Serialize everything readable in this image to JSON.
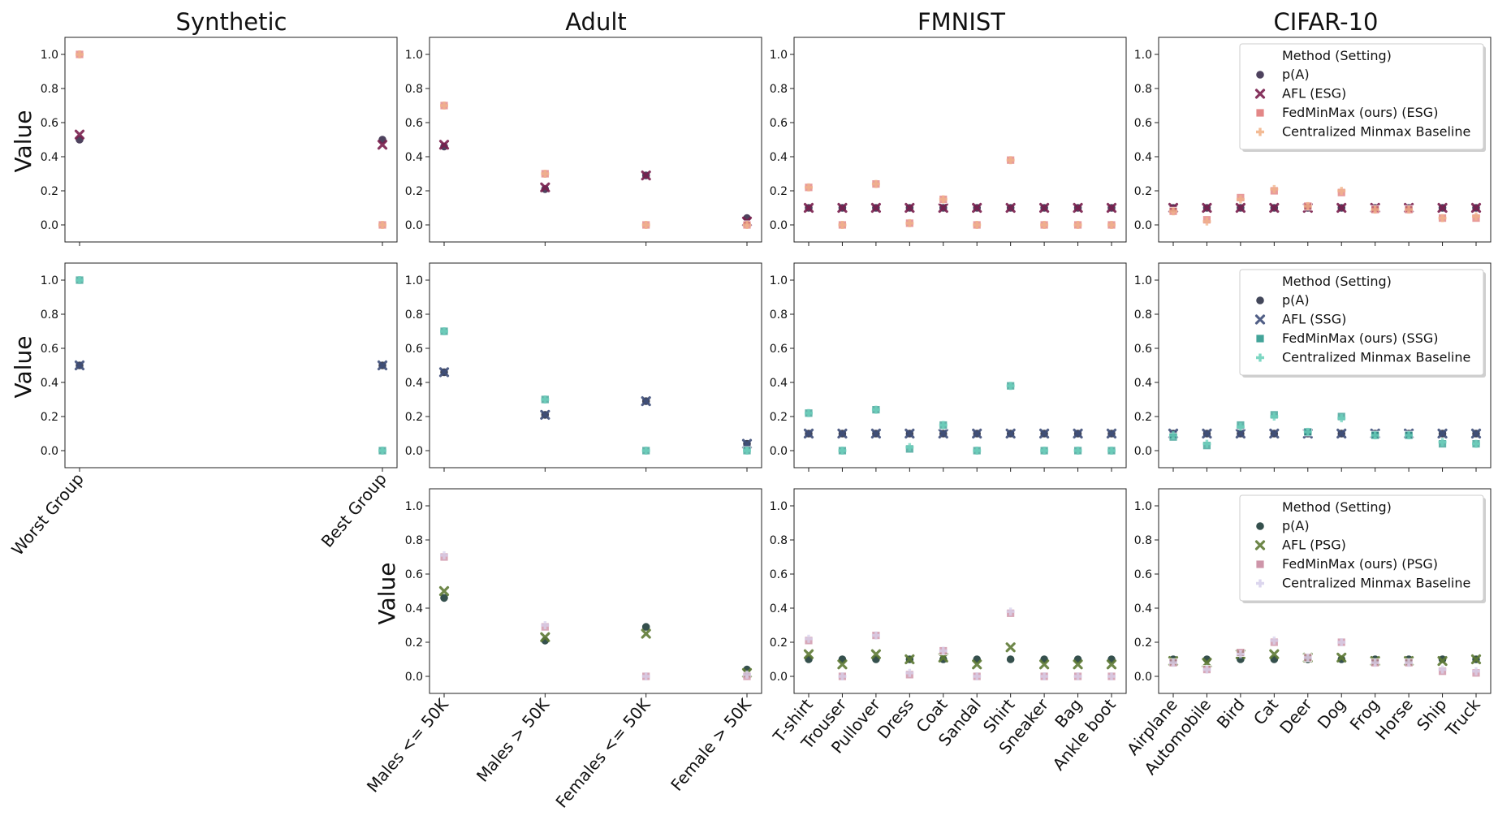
{
  "figure": {
    "column_titles": [
      "Synthetic",
      "Adult",
      "FMNIST",
      "CIFAR-10"
    ],
    "ylabel": "Value",
    "yticks": [
      "0.0",
      "0.2",
      "0.4",
      "0.6",
      "0.8",
      "1.0"
    ],
    "ylim": [
      -0.1,
      1.1
    ]
  },
  "datasets": {
    "synthetic": {
      "categories": [
        "Worst Group",
        "Best Group"
      ]
    },
    "adult": {
      "categories": [
        "Males <= 50K",
        "Males > 50K",
        "Females <= 50K",
        "Female > 50K"
      ]
    },
    "fmnist": {
      "categories": [
        "T-shirt",
        "Trouser",
        "Pullover",
        "Dress",
        "Coat",
        "Sandal",
        "Shirt",
        "Sneaker",
        "Bag",
        "Ankle boot"
      ]
    },
    "cifar": {
      "categories": [
        "Airplane",
        "Automobile",
        "Bird",
        "Cat",
        "Deer",
        "Dog",
        "Frog",
        "Horse",
        "Ship",
        "Truck"
      ]
    }
  },
  "legends": [
    {
      "title": "Method (Setting)",
      "entries": [
        "p(A)",
        "AFL (ESG)",
        "FedMinMax (ours) (ESG)",
        "Centralized Minmax Baseline"
      ]
    },
    {
      "title": "Method (Setting)",
      "entries": [
        "p(A)",
        "AFL (SSG)",
        "FedMinMax (ours) (SSG)",
        "Centralized Minmax Baseline"
      ]
    },
    {
      "title": "Method (Setting)",
      "entries": [
        "p(A)",
        "AFL (PSG)",
        "FedMinMax (ours) (PSG)",
        "Centralized Minmax Baseline"
      ]
    }
  ],
  "colors": {
    "ESG": [
      "#3b2e4d",
      "#7a1f4e",
      "#e07a7a",
      "#f2b48a"
    ],
    "SSG": [
      "#2e3348",
      "#3f4f7a",
      "#2f9a8e",
      "#6fd3bd"
    ],
    "PSG": [
      "#1f3d3a",
      "#5e7a35",
      "#c98aa0",
      "#d8d2ec"
    ]
  },
  "chart_data": [
    {
      "type": "scatter",
      "row": 0,
      "dataset": "synthetic",
      "setting": "ESG",
      "series": [
        {
          "name": "p(A)",
          "values": [
            0.5,
            0.5
          ]
        },
        {
          "name": "AFL (ESG)",
          "values": [
            0.53,
            0.47
          ]
        },
        {
          "name": "FedMinMax (ours) (ESG)",
          "values": [
            1.0,
            0.0
          ]
        },
        {
          "name": "Centralized Minmax Baseline",
          "values": [
            1.0,
            0.0
          ]
        }
      ]
    },
    {
      "type": "scatter",
      "row": 0,
      "dataset": "adult",
      "setting": "ESG",
      "series": [
        {
          "name": "p(A)",
          "values": [
            0.46,
            0.21,
            0.29,
            0.04
          ]
        },
        {
          "name": "AFL (ESG)",
          "values": [
            0.47,
            0.22,
            0.29,
            0.02
          ]
        },
        {
          "name": "FedMinMax (ours) (ESG)",
          "values": [
            0.7,
            0.3,
            0.0,
            0.0
          ]
        },
        {
          "name": "Centralized Minmax Baseline",
          "values": [
            0.7,
            0.3,
            0.0,
            0.0
          ]
        }
      ]
    },
    {
      "type": "scatter",
      "row": 0,
      "dataset": "fmnist",
      "setting": "ESG",
      "series": [
        {
          "name": "p(A)",
          "values": [
            0.1,
            0.1,
            0.1,
            0.1,
            0.1,
            0.1,
            0.1,
            0.1,
            0.1,
            0.1
          ]
        },
        {
          "name": "AFL (ESG)",
          "values": [
            0.1,
            0.1,
            0.1,
            0.1,
            0.1,
            0.1,
            0.1,
            0.1,
            0.1,
            0.1
          ]
        },
        {
          "name": "FedMinMax (ours) (ESG)",
          "values": [
            0.22,
            0.0,
            0.24,
            0.01,
            0.15,
            0.0,
            0.38,
            0.0,
            0.0,
            0.0
          ]
        },
        {
          "name": "Centralized Minmax Baseline",
          "values": [
            0.22,
            0.0,
            0.24,
            0.01,
            0.15,
            0.0,
            0.38,
            0.0,
            0.0,
            0.0
          ]
        }
      ]
    },
    {
      "type": "scatter",
      "row": 0,
      "dataset": "cifar",
      "setting": "ESG",
      "series": [
        {
          "name": "p(A)",
          "values": [
            0.1,
            0.1,
            0.1,
            0.1,
            0.1,
            0.1,
            0.1,
            0.1,
            0.1,
            0.1
          ]
        },
        {
          "name": "AFL (ESG)",
          "values": [
            0.1,
            0.1,
            0.1,
            0.1,
            0.1,
            0.1,
            0.1,
            0.1,
            0.1,
            0.1
          ]
        },
        {
          "name": "FedMinMax (ours) (ESG)",
          "values": [
            0.08,
            0.03,
            0.16,
            0.2,
            0.11,
            0.19,
            0.09,
            0.09,
            0.04,
            0.04
          ]
        },
        {
          "name": "Centralized Minmax Baseline",
          "values": [
            0.08,
            0.02,
            0.15,
            0.21,
            0.11,
            0.2,
            0.09,
            0.09,
            0.04,
            0.05
          ]
        }
      ]
    },
    {
      "type": "scatter",
      "row": 1,
      "dataset": "synthetic",
      "setting": "SSG",
      "series": [
        {
          "name": "p(A)",
          "values": [
            0.5,
            0.5
          ]
        },
        {
          "name": "AFL (SSG)",
          "values": [
            0.5,
            0.5
          ]
        },
        {
          "name": "FedMinMax (ours) (SSG)",
          "values": [
            1.0,
            0.0
          ]
        },
        {
          "name": "Centralized Minmax Baseline",
          "values": [
            1.0,
            0.0
          ]
        }
      ]
    },
    {
      "type": "scatter",
      "row": 1,
      "dataset": "adult",
      "setting": "SSG",
      "series": [
        {
          "name": "p(A)",
          "values": [
            0.46,
            0.21,
            0.29,
            0.04
          ]
        },
        {
          "name": "AFL (SSG)",
          "values": [
            0.46,
            0.21,
            0.29,
            0.04
          ]
        },
        {
          "name": "FedMinMax (ours) (SSG)",
          "values": [
            0.7,
            0.3,
            0.0,
            0.0
          ]
        },
        {
          "name": "Centralized Minmax Baseline",
          "values": [
            0.7,
            0.3,
            0.0,
            0.0
          ]
        }
      ]
    },
    {
      "type": "scatter",
      "row": 1,
      "dataset": "fmnist",
      "setting": "SSG",
      "series": [
        {
          "name": "p(A)",
          "values": [
            0.1,
            0.1,
            0.1,
            0.1,
            0.1,
            0.1,
            0.1,
            0.1,
            0.1,
            0.1
          ]
        },
        {
          "name": "AFL (SSG)",
          "values": [
            0.1,
            0.1,
            0.1,
            0.1,
            0.1,
            0.1,
            0.1,
            0.1,
            0.1,
            0.1
          ]
        },
        {
          "name": "FedMinMax (ours) (SSG)",
          "values": [
            0.22,
            0.0,
            0.24,
            0.01,
            0.15,
            0.0,
            0.38,
            0.0,
            0.0,
            0.0
          ]
        },
        {
          "name": "Centralized Minmax Baseline",
          "values": [
            0.22,
            0.0,
            0.24,
            0.02,
            0.15,
            0.0,
            0.38,
            0.0,
            0.0,
            0.0
          ]
        }
      ]
    },
    {
      "type": "scatter",
      "row": 1,
      "dataset": "cifar",
      "setting": "SSG",
      "series": [
        {
          "name": "p(A)",
          "values": [
            0.1,
            0.1,
            0.1,
            0.1,
            0.1,
            0.1,
            0.1,
            0.1,
            0.1,
            0.1
          ]
        },
        {
          "name": "AFL (SSG)",
          "values": [
            0.1,
            0.1,
            0.1,
            0.1,
            0.1,
            0.1,
            0.1,
            0.1,
            0.1,
            0.1
          ]
        },
        {
          "name": "FedMinMax (ours) (SSG)",
          "values": [
            0.08,
            0.03,
            0.15,
            0.21,
            0.11,
            0.2,
            0.09,
            0.09,
            0.04,
            0.04
          ]
        },
        {
          "name": "Centralized Minmax Baseline",
          "values": [
            0.09,
            0.04,
            0.14,
            0.2,
            0.11,
            0.19,
            0.09,
            0.09,
            0.05,
            0.04
          ]
        }
      ]
    },
    {
      "type": "scatter",
      "row": 2,
      "dataset": "adult",
      "setting": "PSG",
      "series": [
        {
          "name": "p(A)",
          "values": [
            0.46,
            0.21,
            0.29,
            0.04
          ]
        },
        {
          "name": "AFL (PSG)",
          "values": [
            0.5,
            0.23,
            0.25,
            0.02
          ]
        },
        {
          "name": "FedMinMax (ours) (PSG)",
          "values": [
            0.7,
            0.29,
            0.0,
            0.0
          ]
        },
        {
          "name": "Centralized Minmax Baseline",
          "values": [
            0.71,
            0.3,
            0.0,
            0.01
          ]
        }
      ]
    },
    {
      "type": "scatter",
      "row": 2,
      "dataset": "fmnist",
      "setting": "PSG",
      "series": [
        {
          "name": "p(A)",
          "values": [
            0.1,
            0.1,
            0.1,
            0.1,
            0.1,
            0.1,
            0.1,
            0.1,
            0.1,
            0.1
          ]
        },
        {
          "name": "AFL (PSG)",
          "values": [
            0.13,
            0.07,
            0.13,
            0.1,
            0.11,
            0.07,
            0.17,
            0.07,
            0.07,
            0.07
          ]
        },
        {
          "name": "FedMinMax (ours) (PSG)",
          "values": [
            0.21,
            0.0,
            0.24,
            0.01,
            0.15,
            0.0,
            0.37,
            0.0,
            0.0,
            0.0
          ]
        },
        {
          "name": "Centralized Minmax Baseline",
          "values": [
            0.22,
            0.0,
            0.24,
            0.02,
            0.15,
            0.0,
            0.38,
            0.0,
            0.0,
            0.0
          ]
        }
      ]
    },
    {
      "type": "scatter",
      "row": 2,
      "dataset": "cifar",
      "setting": "PSG",
      "series": [
        {
          "name": "p(A)",
          "values": [
            0.1,
            0.1,
            0.1,
            0.1,
            0.1,
            0.1,
            0.1,
            0.1,
            0.1,
            0.1
          ]
        },
        {
          "name": "AFL (PSG)",
          "values": [
            0.09,
            0.08,
            0.13,
            0.13,
            0.11,
            0.11,
            0.09,
            0.09,
            0.09,
            0.1
          ]
        },
        {
          "name": "FedMinMax (ours) (PSG)",
          "values": [
            0.08,
            0.04,
            0.14,
            0.2,
            0.11,
            0.2,
            0.08,
            0.08,
            0.03,
            0.02
          ]
        },
        {
          "name": "Centralized Minmax Baseline",
          "values": [
            0.08,
            0.04,
            0.13,
            0.21,
            0.11,
            0.2,
            0.08,
            0.08,
            0.04,
            0.03
          ]
        }
      ]
    }
  ]
}
